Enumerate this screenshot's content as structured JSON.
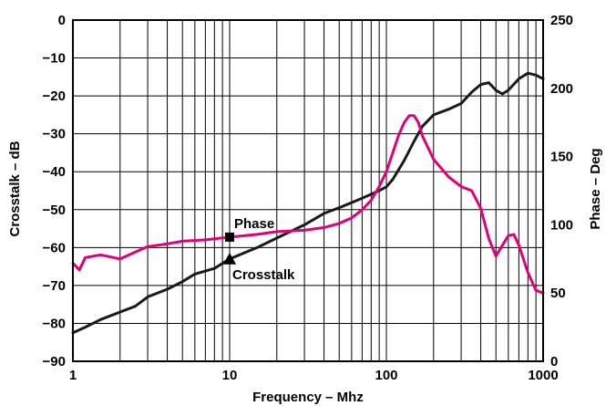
{
  "chart_data": {
    "type": "line",
    "title": "",
    "xlabel": "Frequency – Mhz",
    "ylabel_left": "Crosstalk – dB",
    "ylabel_right": "Phase – Deg",
    "x_scale": "log",
    "xlim": [
      1,
      1000
    ],
    "ylim_left": [
      -90,
      0
    ],
    "ylim_right": [
      0,
      250
    ],
    "grid": true,
    "x_ticks": [
      "1",
      "10",
      "100",
      "1000"
    ],
    "y_ticks_left": [
      "0",
      "−10",
      "−20",
      "−30",
      "−40",
      "−50",
      "−60",
      "−70",
      "−80",
      "−90"
    ],
    "y_ticks_right": [
      "250",
      "200",
      "150",
      "100",
      "50",
      "0"
    ],
    "series": [
      {
        "name": "Crosstalk",
        "axis": "left",
        "color": "#1a1a1a",
        "points": [
          [
            1,
            -82.5
          ],
          [
            1.2,
            -81
          ],
          [
            1.5,
            -79
          ],
          [
            2,
            -77
          ],
          [
            2.5,
            -75.5
          ],
          [
            3,
            -73
          ],
          [
            4,
            -71
          ],
          [
            5,
            -69
          ],
          [
            6,
            -67
          ],
          [
            8,
            -65.5
          ],
          [
            10,
            -63
          ],
          [
            15,
            -60
          ],
          [
            20,
            -57.5
          ],
          [
            30,
            -54
          ],
          [
            40,
            -51
          ],
          [
            50,
            -49.5
          ],
          [
            70,
            -47
          ],
          [
            90,
            -45
          ],
          [
            100,
            -44
          ],
          [
            110,
            -42
          ],
          [
            130,
            -37
          ],
          [
            150,
            -32
          ],
          [
            170,
            -28
          ],
          [
            200,
            -25
          ],
          [
            250,
            -23.5
          ],
          [
            300,
            -22
          ],
          [
            350,
            -19
          ],
          [
            400,
            -17
          ],
          [
            450,
            -16.5
          ],
          [
            500,
            -18.5
          ],
          [
            550,
            -19.5
          ],
          [
            600,
            -18.5
          ],
          [
            700,
            -15.5
          ],
          [
            800,
            -14
          ],
          [
            900,
            -14.5
          ],
          [
            1000,
            -15.5
          ]
        ]
      },
      {
        "name": "Phase",
        "axis": "right",
        "color": "#e0007a",
        "points": [
          [
            1,
            72
          ],
          [
            1.1,
            67
          ],
          [
            1.2,
            76
          ],
          [
            1.5,
            78
          ],
          [
            2,
            75
          ],
          [
            2.5,
            80
          ],
          [
            3,
            84
          ],
          [
            4,
            86
          ],
          [
            5,
            88
          ],
          [
            7,
            89
          ],
          [
            10,
            91
          ],
          [
            15,
            93
          ],
          [
            20,
            95
          ],
          [
            30,
            96
          ],
          [
            40,
            98
          ],
          [
            50,
            101
          ],
          [
            60,
            105
          ],
          [
            70,
            111
          ],
          [
            80,
            118
          ],
          [
            90,
            128
          ],
          [
            100,
            139
          ],
          [
            110,
            153
          ],
          [
            120,
            166
          ],
          [
            130,
            175
          ],
          [
            140,
            180
          ],
          [
            150,
            180
          ],
          [
            160,
            175
          ],
          [
            170,
            165
          ],
          [
            200,
            148
          ],
          [
            250,
            135
          ],
          [
            300,
            128
          ],
          [
            350,
            125
          ],
          [
            400,
            112
          ],
          [
            450,
            90
          ],
          [
            500,
            77
          ],
          [
            550,
            85
          ],
          [
            600,
            92
          ],
          [
            650,
            93
          ],
          [
            700,
            85
          ],
          [
            800,
            65
          ],
          [
            900,
            52
          ],
          [
            1000,
            50
          ]
        ]
      }
    ],
    "annotations": [
      {
        "text": "Phase",
        "marker": "square",
        "series": "Phase",
        "x": 10,
        "y": 91
      },
      {
        "text": "Crosstalk",
        "marker": "triangle",
        "series": "Crosstalk",
        "x": 10,
        "y": -63
      }
    ]
  }
}
